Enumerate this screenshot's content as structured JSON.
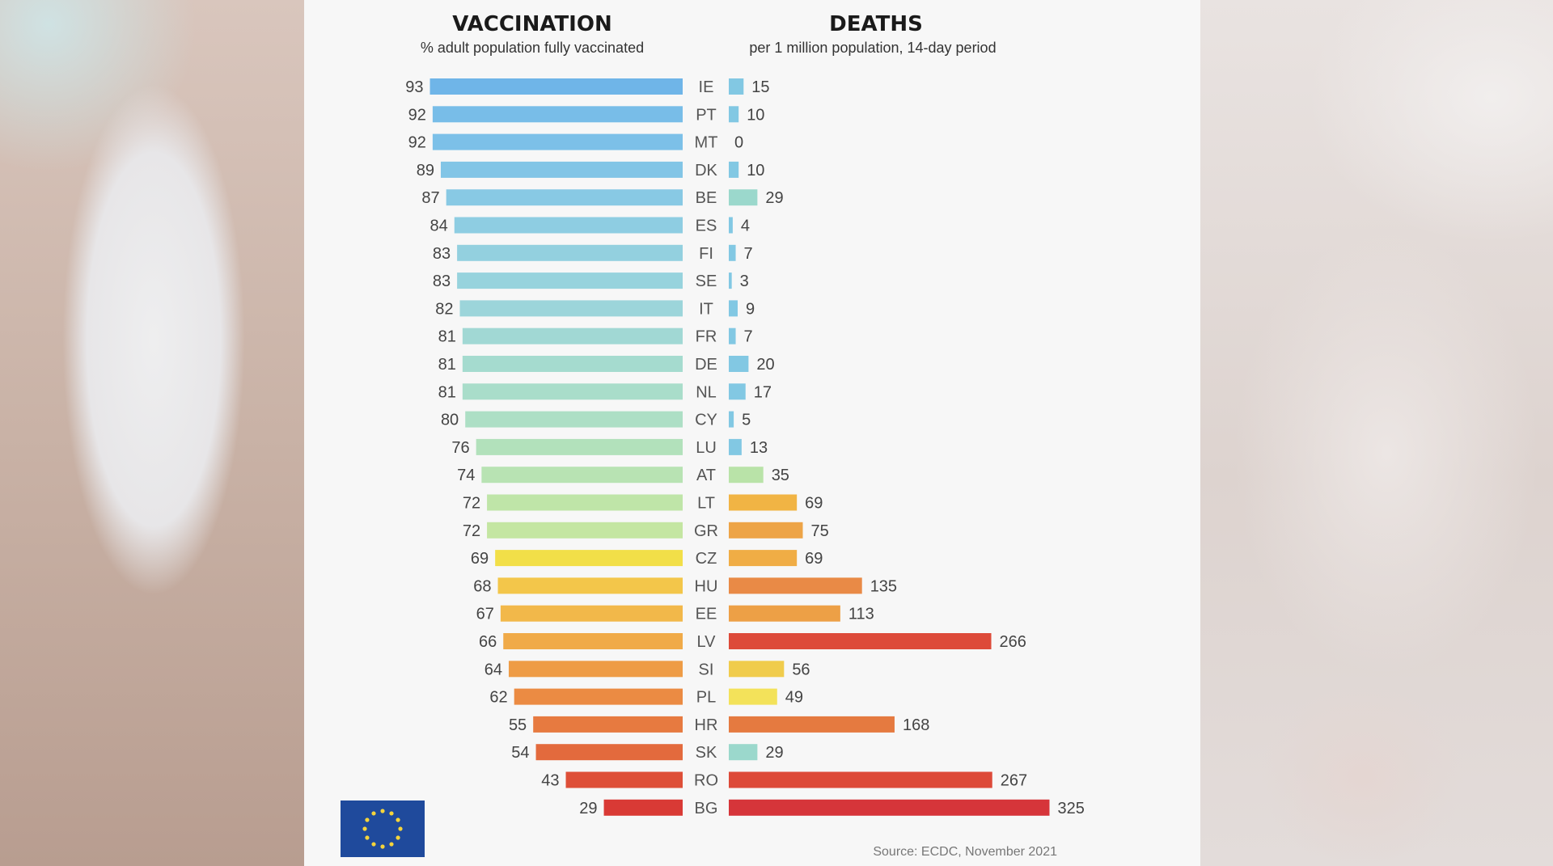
{
  "chart_data": [
    {
      "type": "bar",
      "title": "VACCINATION",
      "subtitle": "% adult population fully vaccinated",
      "categories": [
        "IE",
        "PT",
        "MT",
        "DK",
        "BE",
        "ES",
        "FI",
        "SE",
        "IT",
        "FR",
        "DE",
        "NL",
        "CY",
        "LU",
        "AT",
        "LT",
        "GR",
        "CZ",
        "HU",
        "EE",
        "LV",
        "SI",
        "PL",
        "HR",
        "SK",
        "RO",
        "BG"
      ],
      "values": [
        93,
        92,
        92,
        89,
        87,
        84,
        83,
        83,
        82,
        81,
        81,
        81,
        80,
        76,
        74,
        72,
        72,
        69,
        68,
        67,
        66,
        64,
        62,
        55,
        54,
        43,
        29
      ],
      "colors": [
        "#6fb5e8",
        "#78bde8",
        "#7cc0e8",
        "#82c5e6",
        "#88c9e4",
        "#8ecde2",
        "#93d0df",
        "#97d3dd",
        "#9cd5da",
        "#a1d8d4",
        "#a5dbcf",
        "#a9ddca",
        "#addfc5",
        "#b2e1bb",
        "#b8e3b3",
        "#bfe5a8",
        "#c4e6a2",
        "#f2df48",
        "#f3c64a",
        "#f2b84a",
        "#f0aa48",
        "#ee9c46",
        "#eb8b43",
        "#e77a40",
        "#e36a3d",
        "#de4f38",
        "#d93a35"
      ]
    },
    {
      "type": "bar",
      "title": "DEATHS",
      "subtitle": "per 1 million population, 14-day period",
      "categories": [
        "IE",
        "PT",
        "MT",
        "DK",
        "BE",
        "ES",
        "FI",
        "SE",
        "IT",
        "FR",
        "DE",
        "NL",
        "CY",
        "LU",
        "AT",
        "LT",
        "GR",
        "CZ",
        "HU",
        "EE",
        "LV",
        "SI",
        "PL",
        "HR",
        "SK",
        "RO",
        "BG"
      ],
      "values": [
        15,
        10,
        0,
        10,
        29,
        4,
        7,
        3,
        9,
        7,
        20,
        17,
        5,
        13,
        35,
        69,
        75,
        69,
        135,
        113,
        266,
        56,
        49,
        168,
        29,
        267,
        325
      ],
      "colors": [
        "#82c8e3",
        "#82c8e3",
        "#82c8e3",
        "#82c8e3",
        "#9bd8cc",
        "#82c8e3",
        "#82c8e3",
        "#82c8e3",
        "#82c8e3",
        "#82c8e3",
        "#82c8e3",
        "#82c8e3",
        "#82c8e3",
        "#82c8e3",
        "#b9e3a8",
        "#f1b444",
        "#eda447",
        "#f0ad45",
        "#e98a46",
        "#eda046",
        "#dd4a39",
        "#f0cc4c",
        "#f3e25a",
        "#e57a40",
        "#9bd8cc",
        "#dd4a39",
        "#d6353a"
      ]
    }
  ],
  "source": "Source: ECDC, November 2021",
  "logo": {
    "icon": "eu-flag-icon",
    "bg_color": "#1f4a9c",
    "star_color": "#f5d43b"
  }
}
